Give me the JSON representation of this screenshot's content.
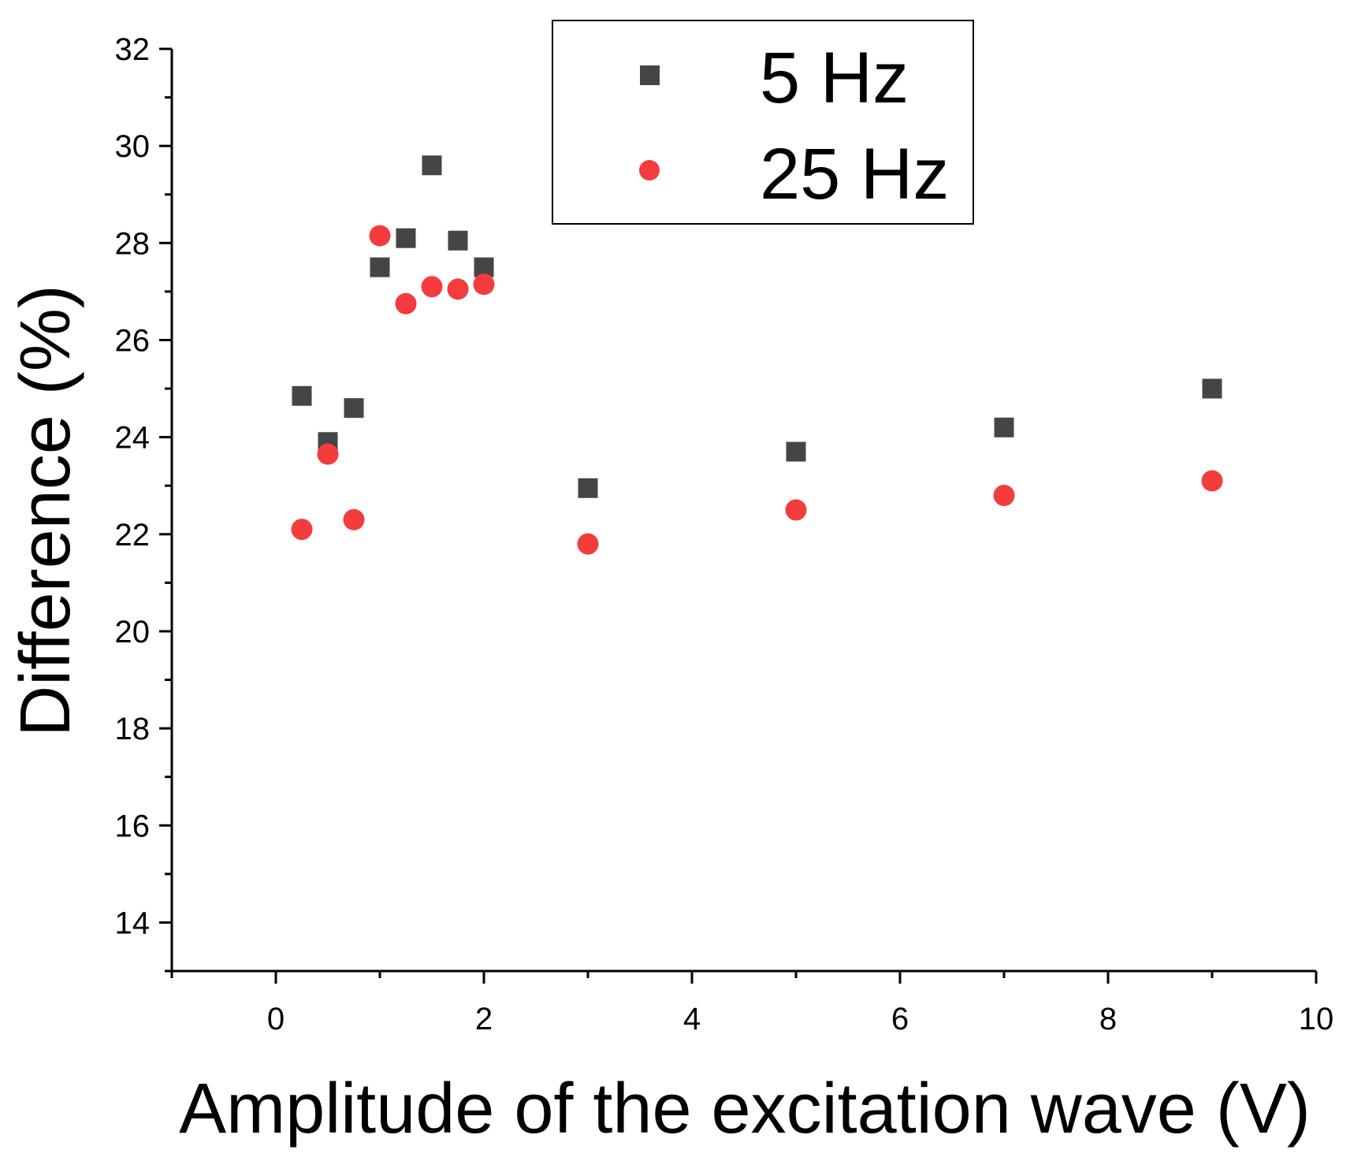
{
  "chart_data": {
    "type": "scatter",
    "title": "",
    "xlabel": "Amplitude of the excitation wave (V)",
    "ylabel": "Difference (%)",
    "xlim": [
      -1,
      10
    ],
    "ylim": [
      13,
      32
    ],
    "xticks": [
      0,
      2,
      4,
      6,
      8,
      10
    ],
    "xtick_labels": [
      "0",
      "2",
      "4",
      "6",
      "8",
      "10"
    ],
    "yticks": [
      14,
      16,
      18,
      20,
      22,
      24,
      26,
      28,
      30,
      32
    ],
    "ytick_labels": [
      "14",
      "16",
      "18",
      "20",
      "22",
      "24",
      "26",
      "28",
      "30",
      "32"
    ],
    "grid": false,
    "legend_position": "top-center",
    "series": [
      {
        "name": "5 Hz",
        "marker": "square",
        "color": "#454545",
        "x": [
          0.25,
          0.5,
          0.75,
          1.0,
          1.25,
          1.5,
          1.75,
          2.0,
          3.0,
          5.0,
          7.0,
          9.0
        ],
        "y": [
          24.85,
          23.9,
          24.6,
          27.5,
          28.1,
          29.6,
          28.05,
          27.5,
          22.95,
          23.7,
          24.2,
          25.0
        ]
      },
      {
        "name": "25 Hz",
        "marker": "circle",
        "color": "#f53c3c",
        "x": [
          0.25,
          0.5,
          0.75,
          1.0,
          1.25,
          1.5,
          1.75,
          2.0,
          3.0,
          5.0,
          7.0,
          9.0
        ],
        "y": [
          22.1,
          23.65,
          22.3,
          28.15,
          26.75,
          27.1,
          27.05,
          27.15,
          21.8,
          22.5,
          22.8,
          23.1
        ]
      }
    ]
  }
}
